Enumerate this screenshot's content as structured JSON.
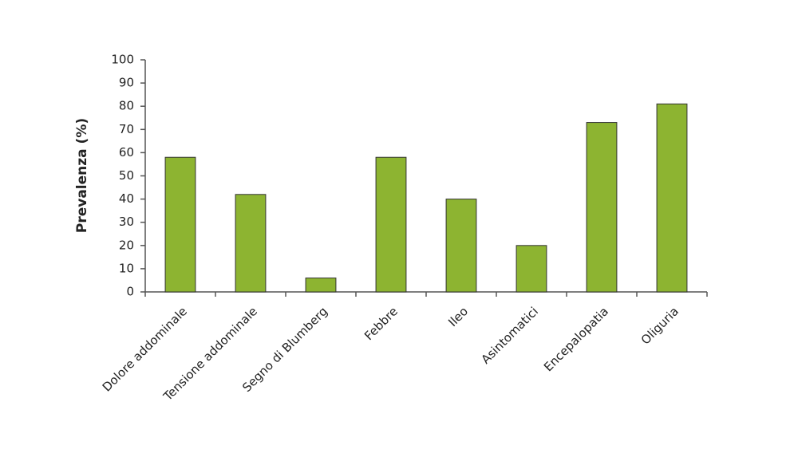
{
  "chart_data": {
    "type": "bar",
    "y_label": "Prevalenza (%)",
    "categories": [
      "Dolore addominale",
      "Tensione addominale",
      "Segno di Blumberg",
      "Febbre",
      "Ileo",
      "Asintomatici",
      "Encepalopatia",
      "Oliguria"
    ],
    "values": [
      58,
      42,
      6,
      58,
      40,
      20,
      73,
      81
    ],
    "color": "#8db431",
    "ylim": [
      0,
      100
    ],
    "yticks": [
      0,
      10,
      20,
      30,
      40,
      50,
      60,
      70,
      80,
      90,
      100
    ],
    "grid": false
  }
}
